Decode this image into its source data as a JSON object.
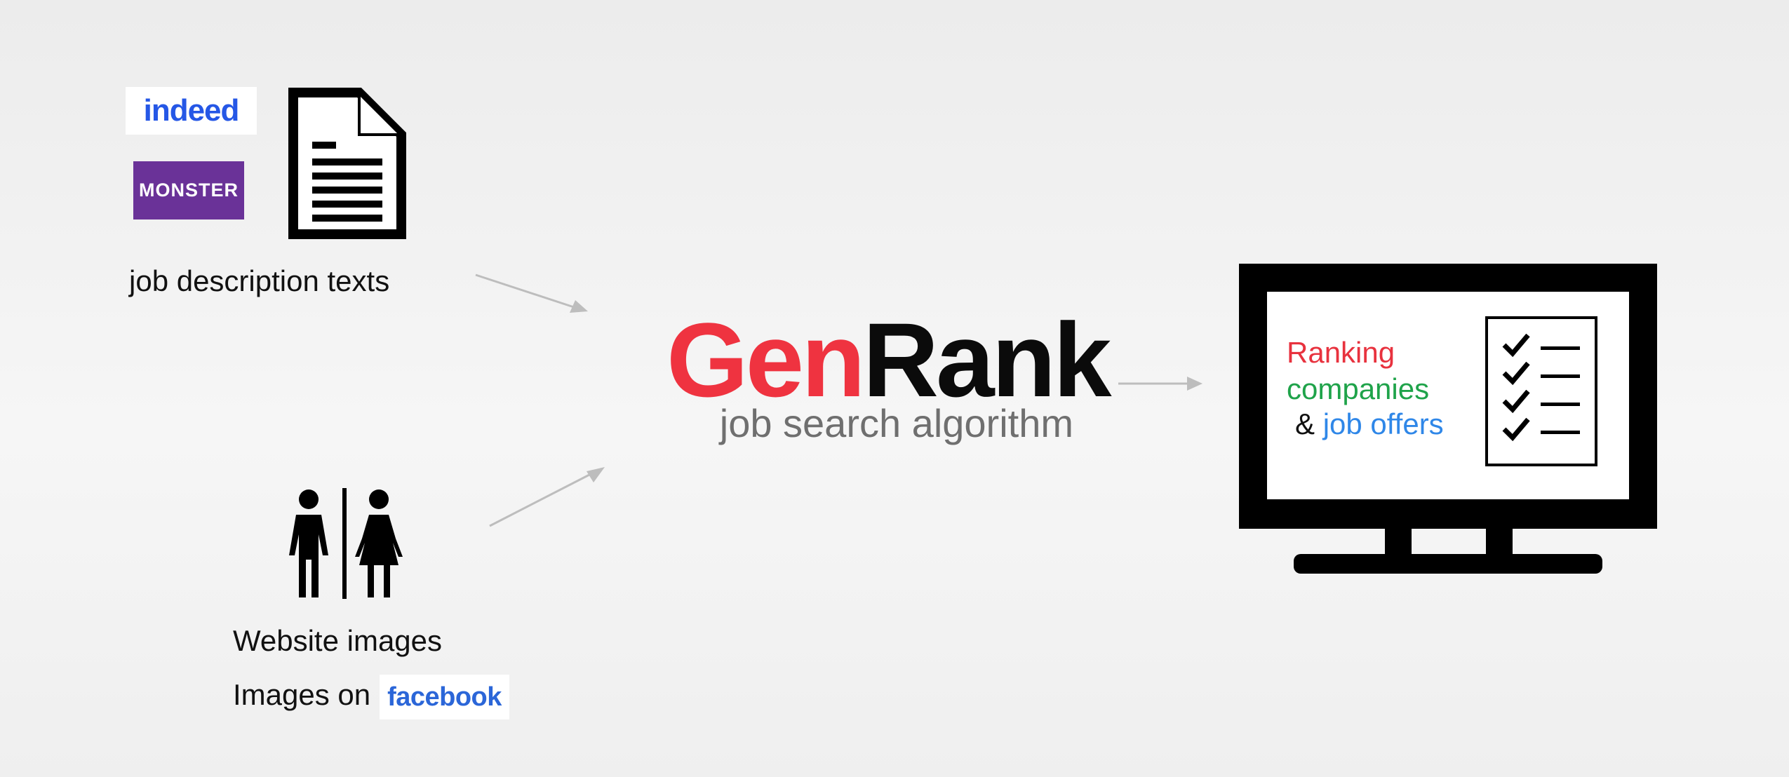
{
  "logos": {
    "indeed": "indeed",
    "monster": "MONSTER",
    "facebook": "facebook"
  },
  "inputs": {
    "text_source_label": "job description texts",
    "image_source_label": "Website images",
    "images_on_label": "Images on"
  },
  "center": {
    "title_part1": "Gen",
    "title_part2": "Rank",
    "subtitle": "job search algorithm"
  },
  "output": {
    "line1": "Ranking",
    "line2": "companies",
    "amp": "&",
    "line3": "job offers"
  },
  "icons": {
    "document": "document-icon",
    "people": "restroom-people-icon",
    "monitor": "monitor-icon",
    "checklist": "checklist-icon",
    "arrows": "arrow-icon"
  },
  "colors": {
    "gen_red": "#ef3340",
    "ranking_red": "#e8323e",
    "companies_green": "#1fa34a",
    "job_offers_blue": "#2f87e8",
    "indeed_blue": "#2557e6",
    "monster_purple": "#6a3298",
    "facebook_blue": "#2b66d8"
  }
}
